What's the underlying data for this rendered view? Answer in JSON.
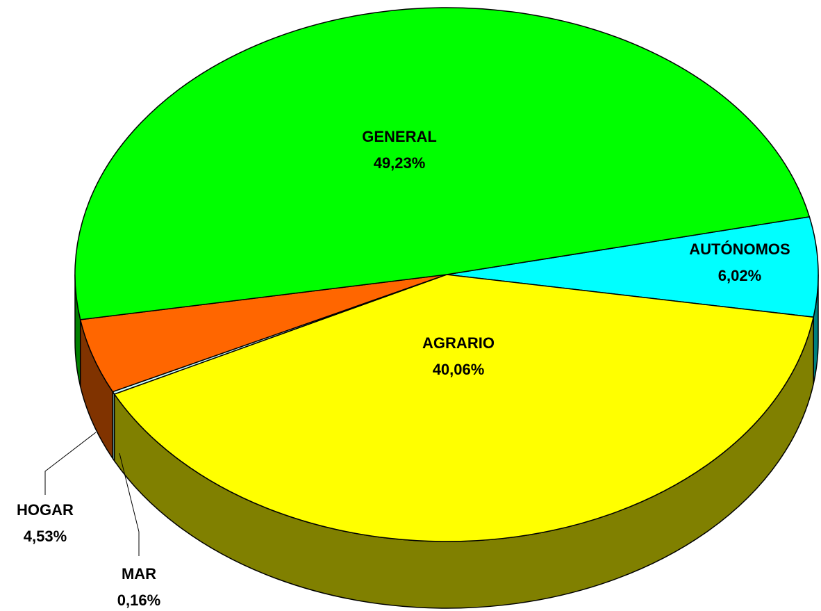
{
  "chart_data": {
    "type": "pie",
    "categories": [
      "AUTÓNOMOS",
      "AGRARIO",
      "MAR",
      "HOGAR",
      "GENERAL"
    ],
    "values": [
      6.02,
      40.06,
      0.16,
      4.53,
      49.23
    ],
    "value_labels": [
      "6,02%",
      "40,06%",
      "0,16%",
      "4,53%",
      "49,23%"
    ],
    "colors": [
      "#00ffff",
      "#ffff00",
      "#ccffff",
      "#ff6600",
      "#00ff00"
    ],
    "side_colors": [
      "#008080",
      "#808000",
      "#66a0a0",
      "#803300",
      "#008000"
    ]
  }
}
